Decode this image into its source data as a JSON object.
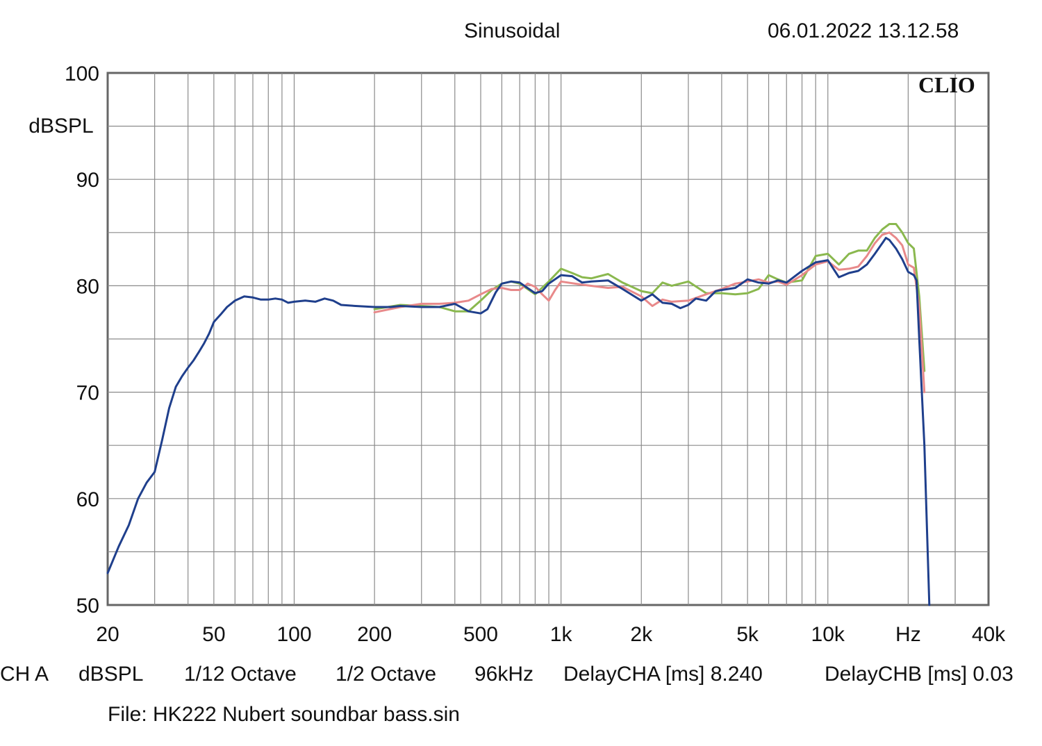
{
  "header": {
    "title": "Sinusoidal",
    "timestamp": "06.01.2022 13.12.58"
  },
  "brand": "CLIO",
  "footer": {
    "channel": "CH A",
    "unit": "dBSPL",
    "smoothing": "1/12 Octave",
    "window": "1/2 Octave",
    "sample_rate": "96kHz",
    "delay_a": "DelayCHA [ms] 8.240",
    "delay_b": "DelayCHB [ms] 0.03"
  },
  "file_label": "File: HK222 Nubert soundbar bass.sin",
  "chart_data": {
    "type": "line",
    "title": "Sinusoidal",
    "ylabel": "dBSPL",
    "xlabel": "",
    "x_scale": "log",
    "xlim": [
      20,
      40000
    ],
    "ylim": [
      50,
      100
    ],
    "grid": true,
    "yticks": [
      {
        "value": 50,
        "label": "50"
      },
      {
        "value": 60,
        "label": "60"
      },
      {
        "value": 70,
        "label": "70"
      },
      {
        "value": 80,
        "label": "80"
      },
      {
        "value": 90,
        "label": "90"
      },
      {
        "value": 100,
        "label": "100"
      }
    ],
    "xticks": [
      {
        "value": 20,
        "label": "20"
      },
      {
        "value": 50,
        "label": "50"
      },
      {
        "value": 100,
        "label": "100"
      },
      {
        "value": 200,
        "label": "200"
      },
      {
        "value": 500,
        "label": "500"
      },
      {
        "value": 1000,
        "label": "1k"
      },
      {
        "value": 2000,
        "label": "2k"
      },
      {
        "value": 5000,
        "label": "5k"
      },
      {
        "value": 10000,
        "label": "10k"
      },
      {
        "value": 20000,
        "label": "Hz"
      },
      {
        "value": 40000,
        "label": "40k"
      }
    ],
    "series": [
      {
        "color": "#8ab84e",
        "points": [
          [
            200,
            77.8
          ],
          [
            250,
            78.2
          ],
          [
            300,
            78.1
          ],
          [
            350,
            78.0
          ],
          [
            400,
            77.6
          ],
          [
            450,
            77.6
          ],
          [
            500,
            78.6
          ],
          [
            550,
            79.6
          ],
          [
            600,
            80.2
          ],
          [
            650,
            80.4
          ],
          [
            700,
            80.2
          ],
          [
            800,
            79.2
          ],
          [
            900,
            80.4
          ],
          [
            1000,
            81.6
          ],
          [
            1100,
            81.2
          ],
          [
            1200,
            80.8
          ],
          [
            1300,
            80.7
          ],
          [
            1500,
            81.1
          ],
          [
            1700,
            80.3
          ],
          [
            2000,
            79.5
          ],
          [
            2200,
            79.3
          ],
          [
            2400,
            80.3
          ],
          [
            2600,
            80.0
          ],
          [
            3000,
            80.4
          ],
          [
            3500,
            79.3
          ],
          [
            4000,
            79.3
          ],
          [
            4500,
            79.2
          ],
          [
            5000,
            79.3
          ],
          [
            5500,
            79.7
          ],
          [
            6000,
            81.0
          ],
          [
            6500,
            80.6
          ],
          [
            7000,
            80.3
          ],
          [
            8000,
            80.5
          ],
          [
            9000,
            82.8
          ],
          [
            10000,
            83.0
          ],
          [
            11000,
            82.0
          ],
          [
            12000,
            83.0
          ],
          [
            13000,
            83.3
          ],
          [
            14000,
            83.3
          ],
          [
            15000,
            84.5
          ],
          [
            16000,
            85.3
          ],
          [
            17000,
            85.8
          ],
          [
            18000,
            85.8
          ],
          [
            19000,
            85.0
          ],
          [
            20000,
            84.0
          ],
          [
            21000,
            83.5
          ],
          [
            22000,
            79.0
          ],
          [
            23000,
            72.0
          ]
        ]
      },
      {
        "color": "#e8898a",
        "points": [
          [
            200,
            77.5
          ],
          [
            250,
            78.0
          ],
          [
            300,
            78.3
          ],
          [
            350,
            78.3
          ],
          [
            400,
            78.4
          ],
          [
            450,
            78.6
          ],
          [
            500,
            79.2
          ],
          [
            550,
            79.7
          ],
          [
            600,
            79.8
          ],
          [
            650,
            79.6
          ],
          [
            700,
            79.6
          ],
          [
            750,
            80.2
          ],
          [
            800,
            79.9
          ],
          [
            850,
            79.2
          ],
          [
            900,
            78.6
          ],
          [
            950,
            79.6
          ],
          [
            1000,
            80.4
          ],
          [
            1200,
            80.1
          ],
          [
            1500,
            79.8
          ],
          [
            1700,
            79.9
          ],
          [
            2000,
            79.0
          ],
          [
            2200,
            78.1
          ],
          [
            2400,
            78.7
          ],
          [
            2600,
            78.5
          ],
          [
            3000,
            78.6
          ],
          [
            3500,
            79.2
          ],
          [
            4000,
            79.7
          ],
          [
            4500,
            80.2
          ],
          [
            5000,
            80.4
          ],
          [
            5500,
            80.6
          ],
          [
            6000,
            80.3
          ],
          [
            6500,
            80.4
          ],
          [
            7000,
            80.1
          ],
          [
            8000,
            81.0
          ],
          [
            9000,
            82.0
          ],
          [
            10000,
            82.3
          ],
          [
            11000,
            81.5
          ],
          [
            12000,
            81.6
          ],
          [
            13000,
            81.8
          ],
          [
            14000,
            82.8
          ],
          [
            15000,
            84.0
          ],
          [
            16000,
            84.8
          ],
          [
            17000,
            85.0
          ],
          [
            18000,
            84.5
          ],
          [
            19000,
            83.8
          ],
          [
            20000,
            82.0
          ],
          [
            21000,
            81.7
          ],
          [
            22000,
            78.0
          ],
          [
            23000,
            70.0
          ]
        ]
      },
      {
        "color": "#1f3f8c",
        "points": [
          [
            20,
            53.0
          ],
          [
            22,
            55.5
          ],
          [
            24,
            57.5
          ],
          [
            26,
            60.0
          ],
          [
            28,
            61.5
          ],
          [
            30,
            62.5
          ],
          [
            32,
            65.5
          ],
          [
            34,
            68.5
          ],
          [
            36,
            70.5
          ],
          [
            38,
            71.5
          ],
          [
            40,
            72.3
          ],
          [
            42,
            73.0
          ],
          [
            44,
            73.8
          ],
          [
            46,
            74.6
          ],
          [
            48,
            75.5
          ],
          [
            50,
            76.6
          ],
          [
            53,
            77.3
          ],
          [
            56,
            78.0
          ],
          [
            60,
            78.6
          ],
          [
            65,
            79.0
          ],
          [
            70,
            78.9
          ],
          [
            75,
            78.7
          ],
          [
            80,
            78.7
          ],
          [
            85,
            78.8
          ],
          [
            90,
            78.7
          ],
          [
            95,
            78.4
          ],
          [
            100,
            78.5
          ],
          [
            110,
            78.6
          ],
          [
            120,
            78.5
          ],
          [
            130,
            78.8
          ],
          [
            140,
            78.6
          ],
          [
            150,
            78.2
          ],
          [
            170,
            78.1
          ],
          [
            200,
            78.0
          ],
          [
            230,
            78.0
          ],
          [
            250,
            78.1
          ],
          [
            300,
            78.0
          ],
          [
            350,
            78.0
          ],
          [
            400,
            78.3
          ],
          [
            450,
            77.6
          ],
          [
            500,
            77.4
          ],
          [
            530,
            77.8
          ],
          [
            570,
            79.4
          ],
          [
            600,
            80.2
          ],
          [
            650,
            80.4
          ],
          [
            700,
            80.3
          ],
          [
            800,
            79.3
          ],
          [
            850,
            79.5
          ],
          [
            900,
            80.2
          ],
          [
            1000,
            81.0
          ],
          [
            1100,
            80.9
          ],
          [
            1200,
            80.3
          ],
          [
            1300,
            80.4
          ],
          [
            1500,
            80.5
          ],
          [
            1700,
            79.7
          ],
          [
            2000,
            78.6
          ],
          [
            2200,
            79.2
          ],
          [
            2400,
            78.4
          ],
          [
            2600,
            78.3
          ],
          [
            2800,
            77.9
          ],
          [
            3000,
            78.2
          ],
          [
            3200,
            78.8
          ],
          [
            3500,
            78.6
          ],
          [
            3800,
            79.5
          ],
          [
            4000,
            79.6
          ],
          [
            4500,
            79.8
          ],
          [
            5000,
            80.6
          ],
          [
            5500,
            80.3
          ],
          [
            6000,
            80.2
          ],
          [
            6500,
            80.5
          ],
          [
            7000,
            80.3
          ],
          [
            8000,
            81.4
          ],
          [
            9000,
            82.2
          ],
          [
            10000,
            82.4
          ],
          [
            11000,
            80.8
          ],
          [
            12000,
            81.2
          ],
          [
            13000,
            81.4
          ],
          [
            14000,
            82.0
          ],
          [
            15000,
            83.0
          ],
          [
            16000,
            84.0
          ],
          [
            16500,
            84.5
          ],
          [
            17000,
            84.3
          ],
          [
            18000,
            83.5
          ],
          [
            19000,
            82.5
          ],
          [
            20000,
            81.3
          ],
          [
            21000,
            81.0
          ],
          [
            21500,
            80.5
          ],
          [
            22000,
            75.0
          ],
          [
            23000,
            65.0
          ],
          [
            24000,
            50.0
          ]
        ]
      }
    ]
  }
}
